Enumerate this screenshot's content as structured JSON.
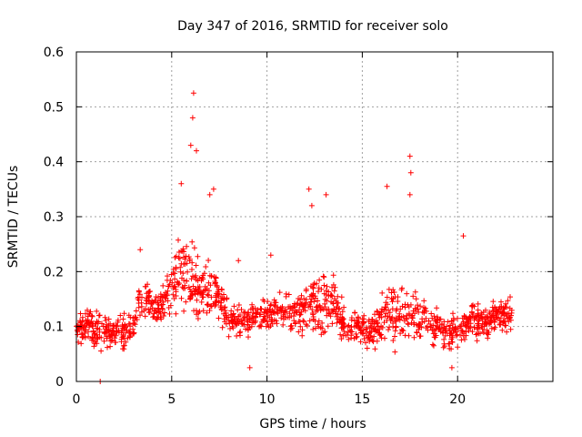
{
  "chart_data": {
    "type": "scatter",
    "title": "Day 347 of 2016, SRMTID for receiver solo",
    "xlabel": "GPS time / hours",
    "ylabel": "SRMTID / TECUs",
    "xlim": [
      0,
      25
    ],
    "ylim": [
      0,
      0.6
    ],
    "x_ticks": [
      "0",
      "5",
      "10",
      "15",
      "20"
    ],
    "y_ticks": [
      "0",
      "0.1",
      "0.2",
      "0.3",
      "0.4",
      "0.5",
      "0.6"
    ],
    "grid": true,
    "marker": "+",
    "series": [
      {
        "name": "SRMTID",
        "color": "#ff0000",
        "points_description": "dense per-epoch samples (approx.), envelope derived from the figure",
        "x": [
          0.0,
          0.25,
          0.5,
          0.75,
          1.0,
          1.25,
          1.5,
          1.75,
          2.0,
          2.25,
          2.5,
          2.75,
          3.0,
          3.25,
          3.5,
          3.75,
          4.0,
          4.25,
          4.5,
          4.75,
          5.0,
          5.25,
          5.5,
          5.75,
          6.0,
          6.25,
          6.5,
          6.75,
          7.0,
          7.25,
          7.5,
          7.75,
          8.0,
          8.25,
          8.5,
          8.75,
          9.0,
          9.25,
          9.5,
          9.75,
          10.0,
          10.25,
          10.5,
          10.75,
          11.0,
          11.25,
          11.5,
          11.75,
          12.0,
          12.25,
          12.5,
          12.75,
          13.0,
          13.25,
          13.5,
          13.75,
          14.0,
          14.25,
          14.5,
          14.75,
          15.0,
          15.25,
          15.5,
          15.75,
          16.0,
          16.25,
          16.5,
          16.75,
          17.0,
          17.25,
          17.5,
          17.75,
          18.0,
          18.25,
          18.5,
          18.75,
          19.0,
          19.25,
          19.5,
          19.75,
          20.0,
          20.25,
          20.5,
          20.75,
          21.0,
          21.25,
          21.5,
          21.75,
          22.0,
          22.25,
          22.5,
          22.75
        ],
        "center": [
          0.1,
          0.1,
          0.1,
          0.1,
          0.09,
          0.09,
          0.09,
          0.09,
          0.09,
          0.09,
          0.09,
          0.09,
          0.1,
          0.14,
          0.15,
          0.15,
          0.14,
          0.13,
          0.14,
          0.15,
          0.17,
          0.19,
          0.2,
          0.2,
          0.19,
          0.17,
          0.16,
          0.16,
          0.17,
          0.17,
          0.15,
          0.13,
          0.11,
          0.11,
          0.11,
          0.11,
          0.11,
          0.12,
          0.12,
          0.12,
          0.12,
          0.12,
          0.13,
          0.13,
          0.13,
          0.12,
          0.12,
          0.12,
          0.13,
          0.14,
          0.14,
          0.14,
          0.14,
          0.15,
          0.15,
          0.13,
          0.11,
          0.1,
          0.1,
          0.1,
          0.1,
          0.09,
          0.09,
          0.1,
          0.11,
          0.12,
          0.12,
          0.12,
          0.12,
          0.12,
          0.12,
          0.12,
          0.12,
          0.11,
          0.11,
          0.1,
          0.1,
          0.09,
          0.09,
          0.09,
          0.09,
          0.1,
          0.11,
          0.11,
          0.11,
          0.11,
          0.11,
          0.11,
          0.12,
          0.12,
          0.12,
          0.12
        ],
        "spread": [
          0.03,
          0.03,
          0.03,
          0.03,
          0.03,
          0.03,
          0.03,
          0.03,
          0.03,
          0.03,
          0.03,
          0.03,
          0.03,
          0.03,
          0.03,
          0.03,
          0.03,
          0.03,
          0.03,
          0.04,
          0.05,
          0.06,
          0.07,
          0.07,
          0.07,
          0.06,
          0.05,
          0.05,
          0.05,
          0.05,
          0.04,
          0.04,
          0.03,
          0.03,
          0.03,
          0.03,
          0.03,
          0.03,
          0.03,
          0.03,
          0.03,
          0.03,
          0.03,
          0.04,
          0.04,
          0.04,
          0.04,
          0.04,
          0.04,
          0.05,
          0.05,
          0.05,
          0.05,
          0.05,
          0.05,
          0.04,
          0.03,
          0.03,
          0.03,
          0.03,
          0.03,
          0.03,
          0.03,
          0.03,
          0.04,
          0.04,
          0.05,
          0.05,
          0.05,
          0.05,
          0.04,
          0.04,
          0.04,
          0.04,
          0.03,
          0.03,
          0.03,
          0.03,
          0.03,
          0.03,
          0.03,
          0.03,
          0.03,
          0.03,
          0.03,
          0.03,
          0.03,
          0.03,
          0.03,
          0.03,
          0.03,
          0.03
        ]
      }
    ],
    "notable_points": [
      {
        "x": 1.25,
        "y": 0.0
      },
      {
        "x": 3.35,
        "y": 0.24
      },
      {
        "x": 5.5,
        "y": 0.36
      },
      {
        "x": 6.0,
        "y": 0.43
      },
      {
        "x": 6.1,
        "y": 0.48
      },
      {
        "x": 6.15,
        "y": 0.525
      },
      {
        "x": 6.3,
        "y": 0.42
      },
      {
        "x": 7.0,
        "y": 0.34
      },
      {
        "x": 7.2,
        "y": 0.35
      },
      {
        "x": 8.5,
        "y": 0.22
      },
      {
        "x": 9.1,
        "y": 0.025
      },
      {
        "x": 10.2,
        "y": 0.23
      },
      {
        "x": 12.2,
        "y": 0.35
      },
      {
        "x": 12.35,
        "y": 0.32
      },
      {
        "x": 13.1,
        "y": 0.34
      },
      {
        "x": 16.3,
        "y": 0.355
      },
      {
        "x": 17.5,
        "y": 0.41
      },
      {
        "x": 17.55,
        "y": 0.38
      },
      {
        "x": 17.5,
        "y": 0.34
      },
      {
        "x": 19.7,
        "y": 0.025
      },
      {
        "x": 20.3,
        "y": 0.265
      }
    ]
  }
}
